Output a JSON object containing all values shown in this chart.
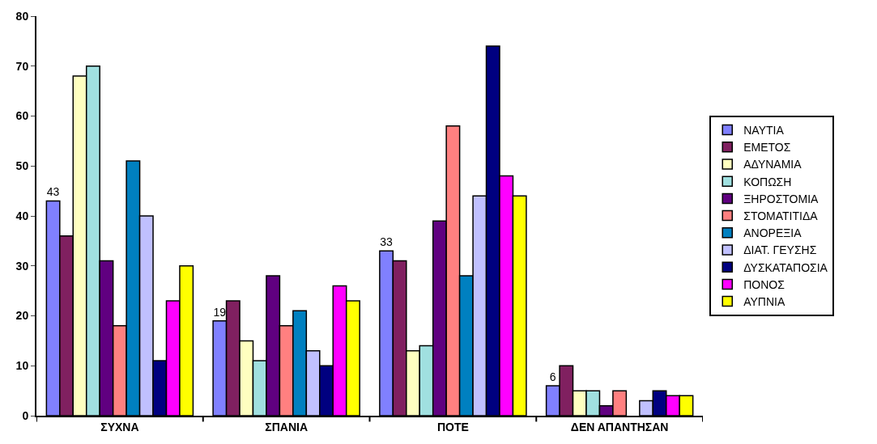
{
  "chart_data": {
    "type": "bar",
    "categories": [
      "ΣΥΧΝΑ",
      "ΣΠΑΝΙΑ",
      "ΠΟΤΕ",
      "ΔΕΝ ΑΠΑΝΤΗΣΑΝ"
    ],
    "series": [
      {
        "name": "ΝΑΥΤΙΑ",
        "color": "#8080ff",
        "values": [
          43,
          19,
          33,
          6
        ],
        "value_labels": [
          "43",
          "19",
          "33",
          "6"
        ]
      },
      {
        "name": "ΕΜΕΤΟΣ",
        "color": "#802060",
        "values": [
          36,
          23,
          31,
          10
        ]
      },
      {
        "name": "ΑΔΥΝΑΜΙΑ",
        "color": "#ffffc0",
        "values": [
          68,
          15,
          13,
          5
        ]
      },
      {
        "name": "ΚΟΠΩΣΗ",
        "color": "#a0e0e0",
        "values": [
          70,
          11,
          14,
          5
        ]
      },
      {
        "name": "ΞΗΡΟΣΤΟΜΙΑ",
        "color": "#600080",
        "values": [
          31,
          28,
          39,
          2
        ]
      },
      {
        "name": "ΣΤΟΜΑΤΙΤΙΔΑ",
        "color": "#ff8080",
        "values": [
          18,
          18,
          58,
          5
        ]
      },
      {
        "name": "ΑΝΟΡΕΞΙΑ",
        "color": "#0080c0",
        "values": [
          51,
          21,
          28,
          null
        ]
      },
      {
        "name": "ΔΙΑΤ. ΓΕΥΣΗΣ",
        "color": "#c0c0ff",
        "values": [
          40,
          13,
          44,
          3
        ]
      },
      {
        "name": "ΔΥΣΚΑΤΑΠΟΣΙΑ",
        "color": "#000080",
        "values": [
          11,
          10,
          74,
          5
        ]
      },
      {
        "name": "ΠΟΝΟΣ",
        "color": "#ff00ff",
        "values": [
          23,
          26,
          48,
          4
        ]
      },
      {
        "name": "ΑΥΠΝΙΑ",
        "color": "#ffff00",
        "values": [
          30,
          23,
          44,
          4
        ]
      }
    ],
    "ylim": [
      0,
      80
    ],
    "yticks": [
      0,
      10,
      20,
      30,
      40,
      50,
      60,
      70,
      80
    ],
    "legend": "right"
  }
}
